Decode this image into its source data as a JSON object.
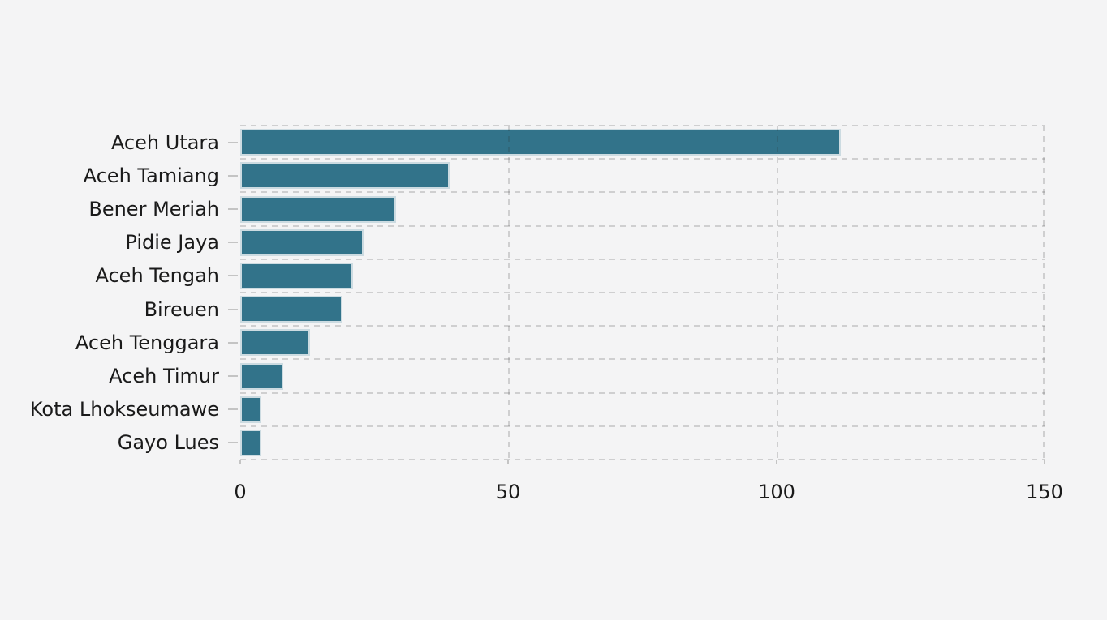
{
  "chart_data": {
    "type": "bar",
    "orientation": "horizontal",
    "title": "",
    "xlabel": "",
    "ylabel": "",
    "categories": [
      "Aceh Utara",
      "Aceh Tamiang",
      "Bener Meriah",
      "Pidie Jaya",
      "Aceh Tengah",
      "Bireuen",
      "Aceh Tenggara",
      "Aceh Timur",
      "Kota Lhokseumawe",
      "Gayo Lues"
    ],
    "values": [
      112,
      39,
      29,
      23,
      21,
      19,
      13,
      8,
      4,
      4
    ],
    "x_ticks": [
      "0",
      "50",
      "100",
      "150"
    ],
    "x_tick_values": [
      0,
      50,
      100,
      150
    ],
    "xlim": [
      0,
      150
    ],
    "grid": "dashed",
    "legend": false,
    "colors": {
      "background": "#f4f4f5",
      "bar_fill": "#32738a",
      "bar_edge": "#ccdbe1",
      "gridline": "rgba(40,40,40,0.18)",
      "tick_mark": "#c4c4c4",
      "text": "#1a1a1a"
    }
  }
}
